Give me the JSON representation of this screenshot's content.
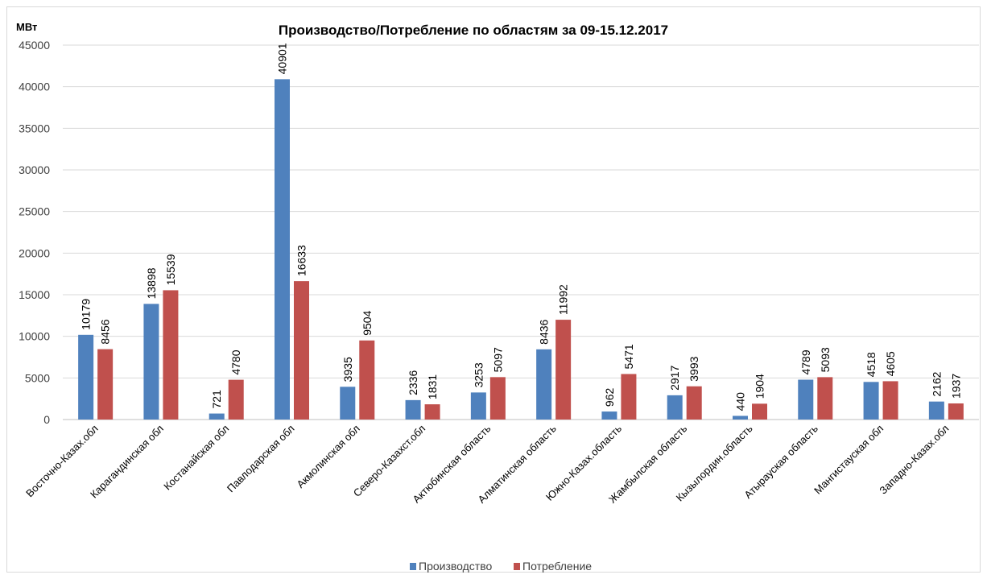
{
  "chart_data": {
    "type": "bar",
    "title": "Производство/Потребление по областям за 09-15.12.2017",
    "ylabel": "МВт",
    "xlabel": "",
    "ylim": [
      0,
      45000
    ],
    "yticks": [
      0,
      5000,
      10000,
      15000,
      20000,
      25000,
      30000,
      35000,
      40000,
      45000
    ],
    "grid": true,
    "legend_position": "bottom",
    "categories": [
      "Восточно-Казах.обл",
      "Карагандинская обл",
      "Костанайская обл",
      "Павлодарская обл",
      "Акмолинская обл",
      "Северо-Казахст.обл",
      "Актюбинская область",
      "Алматинская область",
      "Южно-Казах.область",
      "Жамбылская область",
      "Кызылордин.область",
      "Атырауская область",
      "Мангистауская обл",
      "Западно-Казах.обл"
    ],
    "series": [
      {
        "name": "Производство",
        "color": "#4f81bd",
        "values": [
          10179,
          13898,
          721,
          40901,
          3935,
          2336,
          3253,
          8436,
          962,
          2917,
          440,
          4789,
          4518,
          2162
        ]
      },
      {
        "name": "Потребление",
        "color": "#c0504d",
        "values": [
          8456,
          15539,
          4780,
          16633,
          9504,
          1831,
          5097,
          11992,
          5471,
          3993,
          1904,
          5093,
          4605,
          1937
        ]
      }
    ]
  }
}
